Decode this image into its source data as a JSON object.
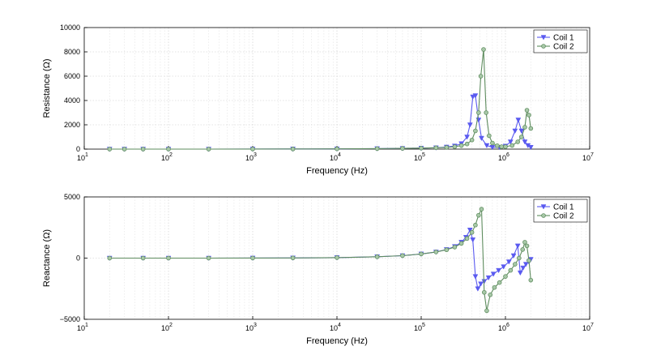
{
  "chart_data": [
    {
      "type": "line",
      "xscale": "log",
      "xlim": [
        10,
        10000000
      ],
      "ylim": [
        0,
        10000
      ],
      "xlabel": "Frequency (Hz)",
      "ylabel": "Resistance (Ω)",
      "x_ticks": [
        {
          "base": "10",
          "exp": "1"
        },
        {
          "base": "10",
          "exp": "2"
        },
        {
          "base": "10",
          "exp": "3"
        },
        {
          "base": "10",
          "exp": "4"
        },
        {
          "base": "10",
          "exp": "5"
        },
        {
          "base": "10",
          "exp": "6"
        },
        {
          "base": "10",
          "exp": "7"
        }
      ],
      "y_ticks": [
        "0",
        "2000",
        "4000",
        "6000",
        "8000",
        "10000"
      ],
      "y_tick_values": [
        0,
        2000,
        4000,
        6000,
        8000,
        10000
      ],
      "grid": true,
      "legend_position": "top-right",
      "series": [
        {
          "name": "Coil 1",
          "color": "#5a5af0",
          "marker": "triangle-down",
          "points": [
            [
              20,
              0
            ],
            [
              30,
              0
            ],
            [
              50,
              0
            ],
            [
              100,
              0
            ],
            [
              300,
              0
            ],
            [
              1000,
              5
            ],
            [
              3000,
              10
            ],
            [
              10000,
              20
            ],
            [
              30000,
              40
            ],
            [
              60000,
              60
            ],
            [
              100000,
              80
            ],
            [
              150000,
              110
            ],
            [
              200000,
              170
            ],
            [
              250000,
              260
            ],
            [
              300000,
              450
            ],
            [
              350000,
              1000
            ],
            [
              380000,
              2000
            ],
            [
              410000,
              4300
            ],
            [
              440000,
              4400
            ],
            [
              480000,
              2400
            ],
            [
              520000,
              900
            ],
            [
              600000,
              300
            ],
            [
              700000,
              150
            ],
            [
              850000,
              150
            ],
            [
              1000000,
              250
            ],
            [
              1150000,
              600
            ],
            [
              1300000,
              1500
            ],
            [
              1420000,
              2400
            ],
            [
              1550000,
              1500
            ],
            [
              1700000,
              600
            ],
            [
              1850000,
              300
            ],
            [
              2000000,
              150
            ]
          ]
        },
        {
          "name": "Coil 2",
          "color": "#5e8c5e",
          "marker": "circle",
          "points": [
            [
              20,
              0
            ],
            [
              30,
              0
            ],
            [
              50,
              0
            ],
            [
              100,
              0
            ],
            [
              300,
              0
            ],
            [
              1000,
              5
            ],
            [
              3000,
              10
            ],
            [
              10000,
              20
            ],
            [
              30000,
              40
            ],
            [
              60000,
              60
            ],
            [
              100000,
              80
            ],
            [
              150000,
              110
            ],
            [
              200000,
              140
            ],
            [
              250000,
              200
            ],
            [
              300000,
              290
            ],
            [
              350000,
              420
            ],
            [
              400000,
              750
            ],
            [
              440000,
              1500
            ],
            [
              480000,
              3000
            ],
            [
              510000,
              6000
            ],
            [
              550000,
              8200
            ],
            [
              590000,
              3000
            ],
            [
              640000,
              1100
            ],
            [
              700000,
              500
            ],
            [
              800000,
              280
            ],
            [
              900000,
              200
            ],
            [
              1000000,
              200
            ],
            [
              1200000,
              300
            ],
            [
              1400000,
              600
            ],
            [
              1550000,
              1000
            ],
            [
              1700000,
              1800
            ],
            [
              1800000,
              3200
            ],
            [
              1900000,
              2800
            ],
            [
              2000000,
              1700
            ]
          ]
        }
      ]
    },
    {
      "type": "line",
      "xscale": "log",
      "xlim": [
        10,
        10000000
      ],
      "ylim": [
        -5000,
        5000
      ],
      "xlabel": "Frequency (Hz)",
      "ylabel": "Reactance (Ω)",
      "x_ticks": [
        {
          "base": "10",
          "exp": "1"
        },
        {
          "base": "10",
          "exp": "2"
        },
        {
          "base": "10",
          "exp": "3"
        },
        {
          "base": "10",
          "exp": "4"
        },
        {
          "base": "10",
          "exp": "5"
        },
        {
          "base": "10",
          "exp": "6"
        },
        {
          "base": "10",
          "exp": "7"
        }
      ],
      "y_ticks": [
        "−5000",
        "0",
        "5000"
      ],
      "y_tick_values": [
        -5000,
        0,
        5000
      ],
      "grid": true,
      "legend_position": "top-right",
      "series": [
        {
          "name": "Coil 1",
          "color": "#5a5af0",
          "marker": "triangle-down",
          "points": [
            [
              20,
              0
            ],
            [
              50,
              0
            ],
            [
              100,
              0
            ],
            [
              300,
              0
            ],
            [
              1000,
              5
            ],
            [
              3000,
              15
            ],
            [
              10000,
              40
            ],
            [
              30000,
              110
            ],
            [
              60000,
              200
            ],
            [
              100000,
              340
            ],
            [
              150000,
              500
            ],
            [
              200000,
              700
            ],
            [
              250000,
              950
            ],
            [
              300000,
              1300
            ],
            [
              340000,
              1700
            ],
            [
              380000,
              2300
            ],
            [
              410000,
              1500
            ],
            [
              440000,
              -1500
            ],
            [
              470000,
              -2500
            ],
            [
              510000,
              -2100
            ],
            [
              560000,
              -1900
            ],
            [
              630000,
              -1600
            ],
            [
              720000,
              -1300
            ],
            [
              830000,
              -1000
            ],
            [
              950000,
              -700
            ],
            [
              1100000,
              -300
            ],
            [
              1250000,
              200
            ],
            [
              1400000,
              1000
            ],
            [
              1500000,
              -1200
            ],
            [
              1620000,
              -800
            ],
            [
              1750000,
              -500
            ],
            [
              1900000,
              -300
            ],
            [
              2000000,
              -100
            ]
          ]
        },
        {
          "name": "Coil 2",
          "color": "#5e8c5e",
          "marker": "circle",
          "points": [
            [
              20,
              0
            ],
            [
              50,
              0
            ],
            [
              100,
              0
            ],
            [
              300,
              0
            ],
            [
              1000,
              5
            ],
            [
              3000,
              15
            ],
            [
              10000,
              40
            ],
            [
              30000,
              110
            ],
            [
              60000,
              200
            ],
            [
              100000,
              340
            ],
            [
              150000,
              500
            ],
            [
              200000,
              680
            ],
            [
              250000,
              900
            ],
            [
              300000,
              1200
            ],
            [
              350000,
              1600
            ],
            [
              400000,
              2100
            ],
            [
              440000,
              2700
            ],
            [
              480000,
              3500
            ],
            [
              520000,
              4000
            ],
            [
              560000,
              -2800
            ],
            [
              600000,
              -4300
            ],
            [
              660000,
              -3000
            ],
            [
              740000,
              -2400
            ],
            [
              850000,
              -2000
            ],
            [
              1000000,
              -1500
            ],
            [
              1150000,
              -1000
            ],
            [
              1300000,
              -500
            ],
            [
              1450000,
              0
            ],
            [
              1600000,
              700
            ],
            [
              1700000,
              1300
            ],
            [
              1800000,
              1000
            ],
            [
              1900000,
              -200
            ],
            [
              2000000,
              -1800
            ]
          ]
        }
      ]
    }
  ]
}
